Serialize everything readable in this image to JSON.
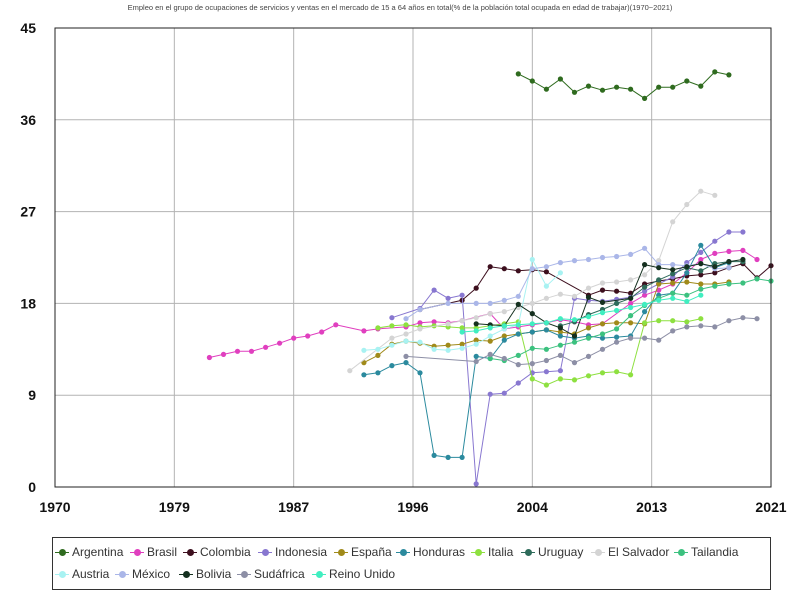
{
  "chart_data": {
    "type": "line",
    "title": "Empleo en el grupo de ocupaciones de servicios y ventas en el mercado de 15 a 64 años en total(% de la población total ocupada en edad de trabajar)(1970~2021)",
    "xlabel": "",
    "ylabel": "",
    "xlim": [
      1970,
      2021
    ],
    "ylim": [
      0,
      45
    ],
    "x_ticks": [
      "1970",
      "1979",
      "1987",
      "1996",
      "2004",
      "2013",
      "2021"
    ],
    "y_ticks": [
      0,
      9,
      18,
      27,
      36,
      45
    ],
    "grid": true,
    "legend_position": "bottom",
    "series": [
      {
        "name": "Argentina",
        "color": "#2f6b1f",
        "x": [
          2003,
          2004,
          2005,
          2006,
          2007,
          2008,
          2009,
          2010,
          2011,
          2012,
          2013,
          2014,
          2015,
          2016,
          2017,
          2018
        ],
        "y": [
          40.5,
          39.8,
          39.0,
          40.0,
          38.7,
          39.3,
          38.9,
          39.2,
          39.0,
          38.1,
          39.2,
          39.2,
          39.8,
          39.3,
          40.7,
          40.4
        ]
      },
      {
        "name": "Brasil",
        "color": "#e03fbf",
        "x": [
          1981,
          1982,
          1983,
          1984,
          1985,
          1986,
          1987,
          1988,
          1989,
          1990,
          1992,
          1993,
          1995,
          1996,
          1997,
          1998,
          1999,
          2001,
          2002,
          2003,
          2004,
          2005,
          2006,
          2007,
          2008,
          2009,
          2011,
          2012,
          2013,
          2014,
          2015,
          2016,
          2017,
          2018,
          2019,
          2020
        ],
        "y": [
          12.7,
          13.0,
          13.3,
          13.3,
          13.7,
          14.1,
          14.6,
          14.8,
          15.2,
          15.9,
          15.3,
          15.5,
          15.7,
          16.1,
          16.2,
          16.1,
          16.3,
          17.0,
          15.5,
          15.7,
          15.9,
          16.1,
          16.4,
          16.2,
          15.9,
          16.0,
          18.0,
          18.8,
          19.3,
          19.9,
          21.0,
          22.3,
          22.9,
          23.1,
          23.2,
          22.3
        ]
      },
      {
        "name": "Colombia",
        "color": "#3d0f1e",
        "x": [
          1996,
          1999,
          2000,
          2001,
          2002,
          2003,
          2004,
          2005,
          2008,
          2009,
          2010,
          2011,
          2012,
          2013,
          2014,
          2015,
          2016,
          2017,
          2018,
          2019,
          2020,
          2021
        ],
        "y": [
          17.4,
          18.3,
          19.5,
          21.6,
          21.4,
          21.2,
          21.3,
          21.1,
          18.8,
          19.3,
          19.2,
          19.0,
          19.9,
          20.2,
          20.4,
          20.7,
          20.8,
          21.0,
          21.5,
          21.9,
          20.5,
          21.7
        ]
      },
      {
        "name": "Indonesia",
        "color": "#8877d0",
        "x": [
          1994,
          1996,
          1997,
          1998,
          1999,
          2000,
          2001,
          2002,
          2003,
          2004,
          2005,
          2006,
          2007,
          2008,
          2009,
          2010,
          2011,
          2012,
          2013,
          2014,
          2015,
          2016,
          2017,
          2018,
          2019
        ],
        "y": [
          16.6,
          17.5,
          19.3,
          18.5,
          18.8,
          0.3,
          9.1,
          9.2,
          10.2,
          11.2,
          11.3,
          11.4,
          18.5,
          18.3,
          18.2,
          18.4,
          18.6,
          19.2,
          19.9,
          20.6,
          22.0,
          23.0,
          24.1,
          25.0,
          25.0
        ]
      },
      {
        "name": "España",
        "color": "#a08a1a",
        "x": [
          1992,
          1993,
          1994,
          1995,
          1996,
          1997,
          1998,
          1999,
          2000,
          2001,
          2002,
          2003,
          2004,
          2005,
          2006,
          2007,
          2008,
          2009,
          2010,
          2011,
          2012,
          2013,
          2014,
          2015,
          2016,
          2017,
          2018
        ],
        "y": [
          12.2,
          12.9,
          14.0,
          14.3,
          14.1,
          13.8,
          13.9,
          14.0,
          14.4,
          14.3,
          14.8,
          15.0,
          15.2,
          15.4,
          15.2,
          15.0,
          15.6,
          16.0,
          16.1,
          16.1,
          16.0,
          19.9,
          20.0,
          20.1,
          19.9,
          19.9,
          20.1
        ]
      },
      {
        "name": "Honduras",
        "color": "#2b8a9e",
        "x": [
          1992,
          1993,
          1994,
          1995,
          1996,
          1997,
          1998,
          1999,
          2000,
          2001,
          2002,
          2003,
          2004,
          2005,
          2006,
          2007,
          2008,
          2009,
          2010,
          2011,
          2012,
          2013,
          2014,
          2015,
          2016,
          2017,
          2018
        ],
        "y": [
          11.0,
          11.2,
          11.9,
          12.2,
          11.2,
          3.1,
          2.9,
          2.9,
          12.8,
          12.6,
          14.4,
          15.0,
          15.2,
          15.4,
          14.8,
          14.6,
          14.8,
          14.6,
          14.7,
          14.8,
          17.2,
          18.8,
          19.0,
          21.0,
          23.7,
          21.5,
          22.0
        ]
      },
      {
        "name": "Italia",
        "color": "#8ee040",
        "x": [
          1993,
          1994,
          1995,
          1996,
          1997,
          1998,
          1999,
          2000,
          2001,
          2002,
          2003,
          2004,
          2005,
          2006,
          2007,
          2008,
          2009,
          2010,
          2011,
          2012,
          2013,
          2014,
          2015,
          2016
        ],
        "y": [
          15.6,
          15.8,
          15.9,
          15.7,
          15.8,
          15.7,
          15.6,
          15.6,
          15.8,
          16.0,
          16.2,
          10.6,
          10.0,
          10.6,
          10.5,
          10.9,
          11.2,
          11.3,
          11.0,
          16.1,
          16.3,
          16.3,
          16.2,
          16.5
        ]
      },
      {
        "name": "Uruguay",
        "color": "#2e6b5a",
        "x": [
          2006,
          2007,
          2008,
          2009,
          2010,
          2011,
          2012,
          2013,
          2014,
          2015,
          2016,
          2017,
          2018,
          2019
        ],
        "y": [
          15.8,
          16.2,
          16.9,
          17.4,
          18.0,
          18.5,
          19.6,
          20.3,
          20.9,
          21.5,
          21.2,
          21.9,
          22.1,
          22.1
        ]
      },
      {
        "name": "El Salvador",
        "color": "#d4d4d4",
        "x": [
          1991,
          1994,
          1995,
          1996,
          1998,
          1999,
          2000,
          2001,
          2002,
          2003,
          2004,
          2005,
          2006,
          2007,
          2008,
          2009,
          2010,
          2011,
          2012,
          2013,
          2014,
          2015,
          2016,
          2017
        ],
        "y": [
          11.4,
          14.6,
          15.0,
          15.5,
          16.0,
          16.3,
          16.6,
          17.0,
          17.2,
          17.6,
          18.0,
          18.5,
          18.9,
          18.7,
          19.5,
          20.0,
          20.1,
          20.3,
          20.8,
          22.2,
          26.0,
          27.7,
          29.0,
          28.6
        ]
      },
      {
        "name": "Tailandia",
        "color": "#3cc17f",
        "x": [
          2001,
          2002,
          2003,
          2004,
          2005,
          2006,
          2007,
          2008,
          2009,
          2010,
          2011,
          2012,
          2013,
          2014,
          2015,
          2016,
          2017,
          2018,
          2019,
          2020,
          2021
        ],
        "y": [
          12.6,
          12.4,
          12.9,
          13.6,
          13.5,
          13.9,
          14.2,
          14.6,
          15.0,
          15.5,
          16.8,
          17.8,
          18.5,
          19.0,
          18.8,
          19.4,
          19.7,
          19.9,
          20.0,
          20.4,
          20.2
        ]
      },
      {
        "name": "Austria",
        "color": "#a8f2f2",
        "x": [
          1992,
          1993,
          1994,
          1995,
          1996,
          1997,
          1998,
          1999,
          2000,
          2001,
          2002,
          2003,
          2004,
          2005,
          2006
        ],
        "y": [
          13.4,
          13.5,
          13.9,
          14.3,
          14.2,
          13.5,
          13.4,
          13.6,
          14.0,
          14.8,
          15.5,
          15.9,
          22.3,
          19.7,
          21.0
        ]
      },
      {
        "name": "México",
        "color": "#aab6e8",
        "x": [
          1995,
          1996,
          1998,
          2000,
          2001,
          2002,
          2003,
          2004,
          2005,
          2006,
          2007,
          2008,
          2009,
          2010,
          2011,
          2012,
          2013,
          2014,
          2015,
          2016,
          2017,
          2018
        ],
        "y": [
          16.5,
          17.4,
          18.0,
          18.0,
          18.0,
          18.3,
          18.7,
          21.4,
          21.6,
          22.0,
          22.2,
          22.3,
          22.5,
          22.6,
          22.8,
          23.4,
          21.8,
          21.8,
          21.7,
          21.9,
          21.4,
          21.5
        ]
      },
      {
        "name": "Bolivia",
        "color": "#15301f",
        "x": [
          2000,
          2001,
          2002,
          2003,
          2004,
          2005,
          2006,
          2007,
          2008,
          2009,
          2011,
          2012,
          2013,
          2014,
          2015,
          2016,
          2017,
          2018,
          2019
        ],
        "y": [
          16.0,
          15.9,
          15.8,
          17.9,
          17.0,
          16.1,
          15.6,
          14.8,
          18.6,
          18.1,
          18.5,
          21.8,
          21.5,
          21.3,
          21.6,
          21.9,
          21.6,
          22.1,
          22.3
        ]
      },
      {
        "name": "Sudáfrica",
        "color": "#8d8fa6",
        "x": [
          1995,
          2000,
          2001,
          2002,
          2003,
          2004,
          2005,
          2006,
          2007,
          2008,
          2009,
          2010,
          2011,
          2012,
          2013,
          2014,
          2015,
          2016,
          2017,
          2018,
          2019,
          2020
        ],
        "y": [
          12.8,
          12.3,
          13.0,
          12.6,
          12.0,
          12.1,
          12.4,
          12.9,
          12.2,
          12.8,
          13.5,
          14.2,
          14.6,
          14.6,
          14.4,
          15.3,
          15.7,
          15.8,
          15.7,
          16.3,
          16.6,
          16.5
        ]
      },
      {
        "name": "Reino Unido",
        "color": "#40eec0",
        "x": [
          1999,
          2000,
          2001,
          2002,
          2003,
          2004,
          2005,
          2006,
          2007,
          2008,
          2009,
          2010,
          2011,
          2012,
          2013,
          2014,
          2015,
          2016
        ],
        "y": [
          15.2,
          15.3,
          15.6,
          15.8,
          15.9,
          16.0,
          16.1,
          16.5,
          16.4,
          16.7,
          17.1,
          17.3,
          17.6,
          17.9,
          18.3,
          18.5,
          18.2,
          18.8
        ]
      }
    ]
  }
}
